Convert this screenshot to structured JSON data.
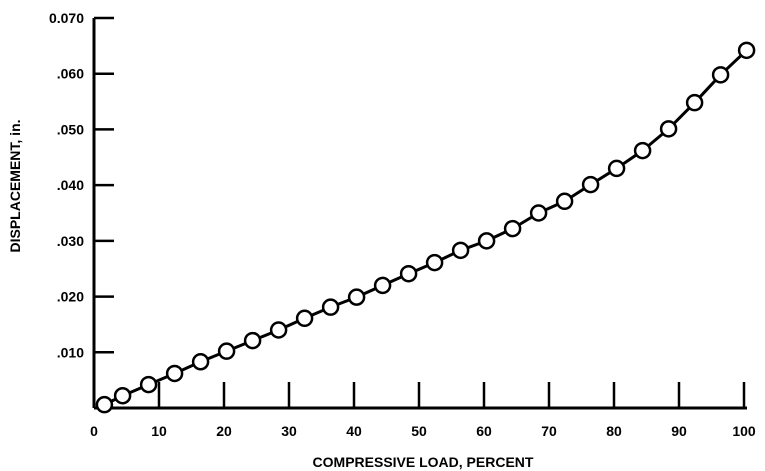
{
  "chart_data": {
    "type": "line",
    "xlabel": "COMPRESSIVE LOAD, PERCENT",
    "ylabel": "DISPLACEMENT, in.",
    "xlim": [
      0,
      100
    ],
    "ylim": [
      0,
      0.07
    ],
    "x_ticks": [
      {
        "value": 0,
        "label": "0"
      },
      {
        "value": 10,
        "label": "10"
      },
      {
        "value": 20,
        "label": "20"
      },
      {
        "value": 30,
        "label": "30"
      },
      {
        "value": 40,
        "label": "40"
      },
      {
        "value": 50,
        "label": "50"
      },
      {
        "value": 60,
        "label": "60"
      },
      {
        "value": 70,
        "label": "70"
      },
      {
        "value": 80,
        "label": "80"
      },
      {
        "value": 90,
        "label": "90"
      },
      {
        "value": 100,
        "label": "100"
      }
    ],
    "y_ticks": [
      {
        "value": 0.01,
        "label": ".010"
      },
      {
        "value": 0.02,
        "label": ".020"
      },
      {
        "value": 0.03,
        "label": ".030"
      },
      {
        "value": 0.04,
        "label": ".040"
      },
      {
        "value": 0.05,
        "label": ".050"
      },
      {
        "value": 0.06,
        "label": ".060"
      },
      {
        "value": 0.07,
        "label": "0.070"
      }
    ],
    "grid": false,
    "marker": "open-circle",
    "series": [
      {
        "x": [
          1.6,
          4.4,
          8.4,
          12.4,
          16.4,
          20.4,
          24.4,
          28.4,
          32.4,
          36.4,
          40.4,
          44.4,
          48.4,
          52.4,
          56.4,
          60.4,
          64.4,
          68.4,
          72.4,
          76.4,
          80.4,
          84.4,
          88.4,
          92.4,
          96.4,
          100.4
        ],
        "y": [
          0.0006,
          0.0022,
          0.0042,
          0.0062,
          0.0083,
          0.0102,
          0.0121,
          0.014,
          0.0161,
          0.0181,
          0.0199,
          0.022,
          0.0241,
          0.0261,
          0.0283,
          0.03,
          0.0322,
          0.035,
          0.0371,
          0.0401,
          0.043,
          0.0462,
          0.0501,
          0.0548,
          0.0598,
          0.0642
        ]
      }
    ]
  }
}
